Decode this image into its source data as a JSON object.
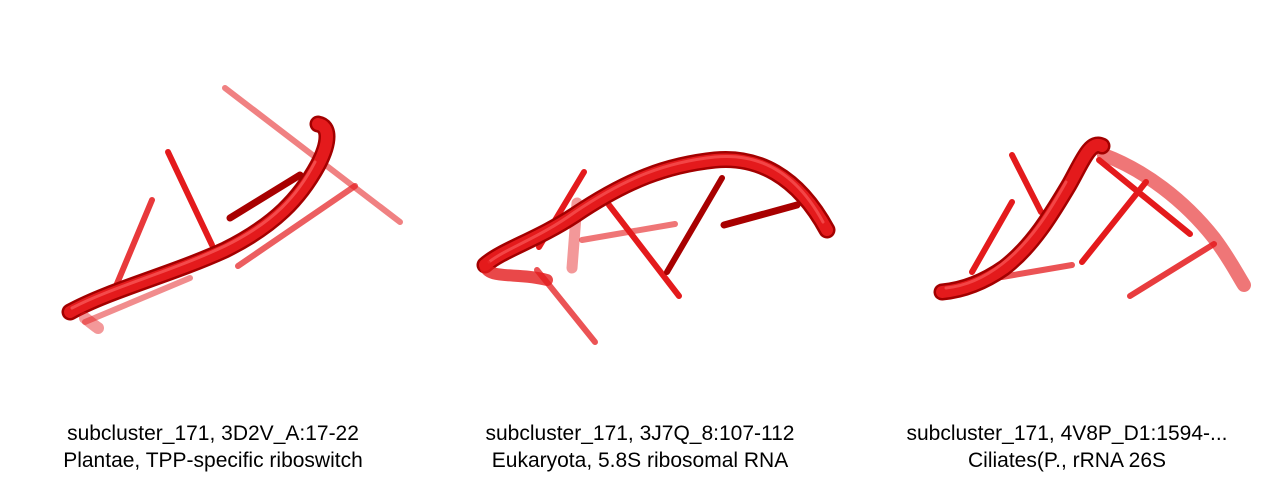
{
  "colors": {
    "rna": "#e41a1c",
    "rna_dark": "#b00000",
    "background": "#ffffff"
  },
  "panels": [
    {
      "line1": "subcluster_171, 3D2V_A:17-22",
      "line2": "Plantae, TPP-specific riboswitch"
    },
    {
      "line1": "subcluster_171, 3J7Q_8:107-112",
      "line2": "Eukaryota, 5.8S ribosomal RNA"
    },
    {
      "line1": "subcluster_171, 4V8P_D1:1594-...",
      "line2": "Ciliates(P., rRNA 26S"
    }
  ]
}
